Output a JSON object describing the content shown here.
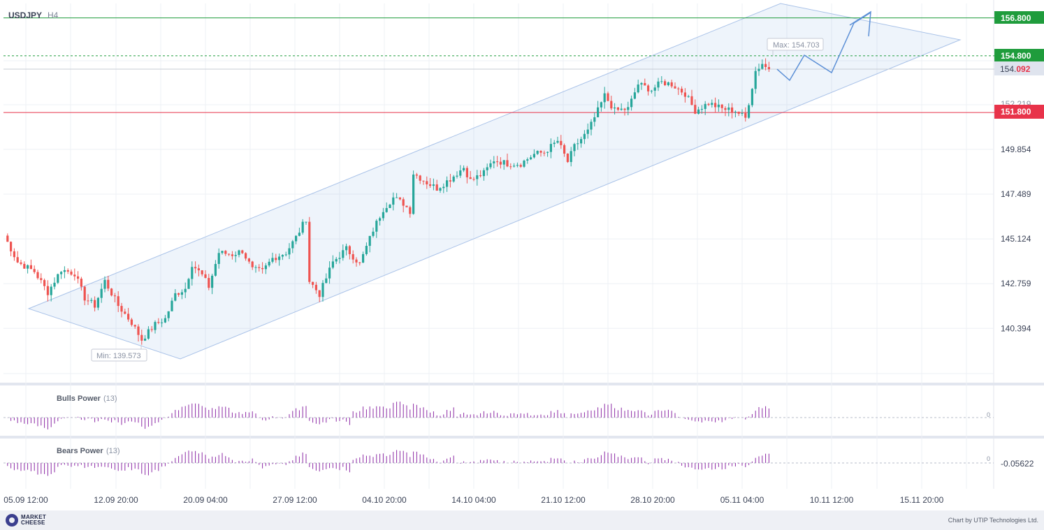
{
  "header": {
    "symbol": "USDJPY",
    "timeframe": "H4"
  },
  "price_labels": {
    "resistance": "156.800",
    "target": "154.800",
    "current_prefix": "154.",
    "current_suffix": "092",
    "support": "151.800",
    "hidden_tick": "152.219"
  },
  "annotations": {
    "max": "Max: 154.703",
    "min": "Min: 139.573"
  },
  "indicators": {
    "bulls": {
      "name": "Bulls Power",
      "period": "(13)",
      "zero": "0"
    },
    "bears": {
      "name": "Bears Power",
      "period": "(13)",
      "zero": "0",
      "value": "-0.05622"
    }
  },
  "footer": {
    "brand_line1": "MARKET",
    "brand_line2": "CHEESE",
    "credit": "Chart by UTIP Technologies Ltd."
  },
  "colors": {
    "up": "#26a69a",
    "down": "#ef5350",
    "resistance": "#1f9c3c",
    "support": "#e8334a",
    "channel": "#5b8fd6",
    "indicator": "#8c2aa6"
  },
  "chart_data": {
    "type": "candlestick",
    "title": "USDJPY H4",
    "y_ticks": [
      140.394,
      142.759,
      145.124,
      147.489,
      149.854
    ],
    "ylim": [
      138.7,
      157.5
    ],
    "x_ticks": [
      "05.09 12:00",
      "12.09 20:00",
      "20.09 04:00",
      "27.09 12:00",
      "04.10 20:00",
      "14.10 04:00",
      "21.10 12:00",
      "28.10 20:00",
      "05.11 04:00",
      "10.11 12:00",
      "15.11 20:00"
    ],
    "levels": [
      {
        "name": "resistance",
        "value": 156.8
      },
      {
        "name": "target",
        "value": 154.8
      },
      {
        "name": "support",
        "value": 151.8
      }
    ],
    "current_price": 154.092,
    "max": 154.703,
    "min": 139.573,
    "close_path": [
      [
        0,
        145.3
      ],
      [
        4,
        143.9
      ],
      [
        9,
        143.4
      ],
      [
        13,
        142.3
      ],
      [
        17,
        143.5
      ],
      [
        21,
        143.3
      ],
      [
        24,
        142.0
      ],
      [
        27,
        141.6
      ],
      [
        30,
        142.9
      ],
      [
        34,
        141.6
      ],
      [
        38,
        140.7
      ],
      [
        41,
        139.8
      ],
      [
        45,
        140.6
      ],
      [
        48,
        140.9
      ],
      [
        51,
        142.2
      ],
      [
        54,
        142.5
      ],
      [
        56,
        143.8
      ],
      [
        59,
        143.2
      ],
      [
        61,
        142.6
      ],
      [
        64,
        144.4
      ],
      [
        68,
        144.3
      ],
      [
        71,
        144.5
      ],
      [
        74,
        143.5
      ],
      [
        77,
        143.4
      ],
      [
        80,
        144.1
      ],
      [
        84,
        144.4
      ],
      [
        87,
        145.2
      ],
      [
        90,
        146.2
      ],
      [
        91,
        142.9
      ],
      [
        94,
        142.2
      ],
      [
        98,
        143.9
      ],
      [
        102,
        144.6
      ],
      [
        106,
        143.8
      ],
      [
        110,
        145.6
      ],
      [
        113,
        146.7
      ],
      [
        116,
        147.3
      ],
      [
        119,
        147.0
      ],
      [
        121,
        146.6
      ],
      [
        122,
        148.6
      ],
      [
        126,
        148.1
      ],
      [
        129,
        147.8
      ],
      [
        133,
        148.3
      ],
      [
        137,
        148.9
      ],
      [
        139,
        148.2
      ],
      [
        143,
        148.6
      ],
      [
        146,
        149.3
      ],
      [
        150,
        149.1
      ],
      [
        154,
        149.1
      ],
      [
        158,
        149.6
      ],
      [
        161,
        149.7
      ],
      [
        165,
        150.3
      ],
      [
        168,
        149.2
      ],
      [
        170,
        150.0
      ],
      [
        174,
        150.8
      ],
      [
        177,
        151.9
      ],
      [
        179,
        152.7
      ],
      [
        182,
        151.9
      ],
      [
        186,
        152.0
      ],
      [
        189,
        153.3
      ],
      [
        193,
        153.0
      ],
      [
        196,
        153.4
      ],
      [
        199,
        153.3
      ],
      [
        203,
        152.8
      ],
      [
        206,
        151.9
      ],
      [
        210,
        152.3
      ],
      [
        214,
        152.0
      ],
      [
        218,
        151.9
      ],
      [
        221,
        151.5
      ],
      [
        224,
        154.0
      ],
      [
        226,
        154.4
      ],
      [
        227,
        154.2
      ],
      [
        228,
        154.09
      ]
    ],
    "projection": [
      {
        "date": "06.11",
        "value": 153.2
      },
      {
        "date": "07.11",
        "value": 154.8
      },
      {
        "date": "10.11 12:00",
        "value": 153.7
      },
      {
        "date": "12.11",
        "value": 156.8
      },
      {
        "date": "13.11",
        "value": 157.5
      }
    ],
    "channel": {
      "upper": [
        {
          "date": "04.09",
          "value": 143.3
        },
        {
          "date": "16.11",
          "value": 154.6
        }
      ],
      "lower": [
        {
          "date": "05.09",
          "value": 141.3
        },
        {
          "date": "16.11",
          "value": 151.5
        }
      ]
    },
    "bulls_power_zero": 0,
    "bears_power_last": -0.05622
  }
}
